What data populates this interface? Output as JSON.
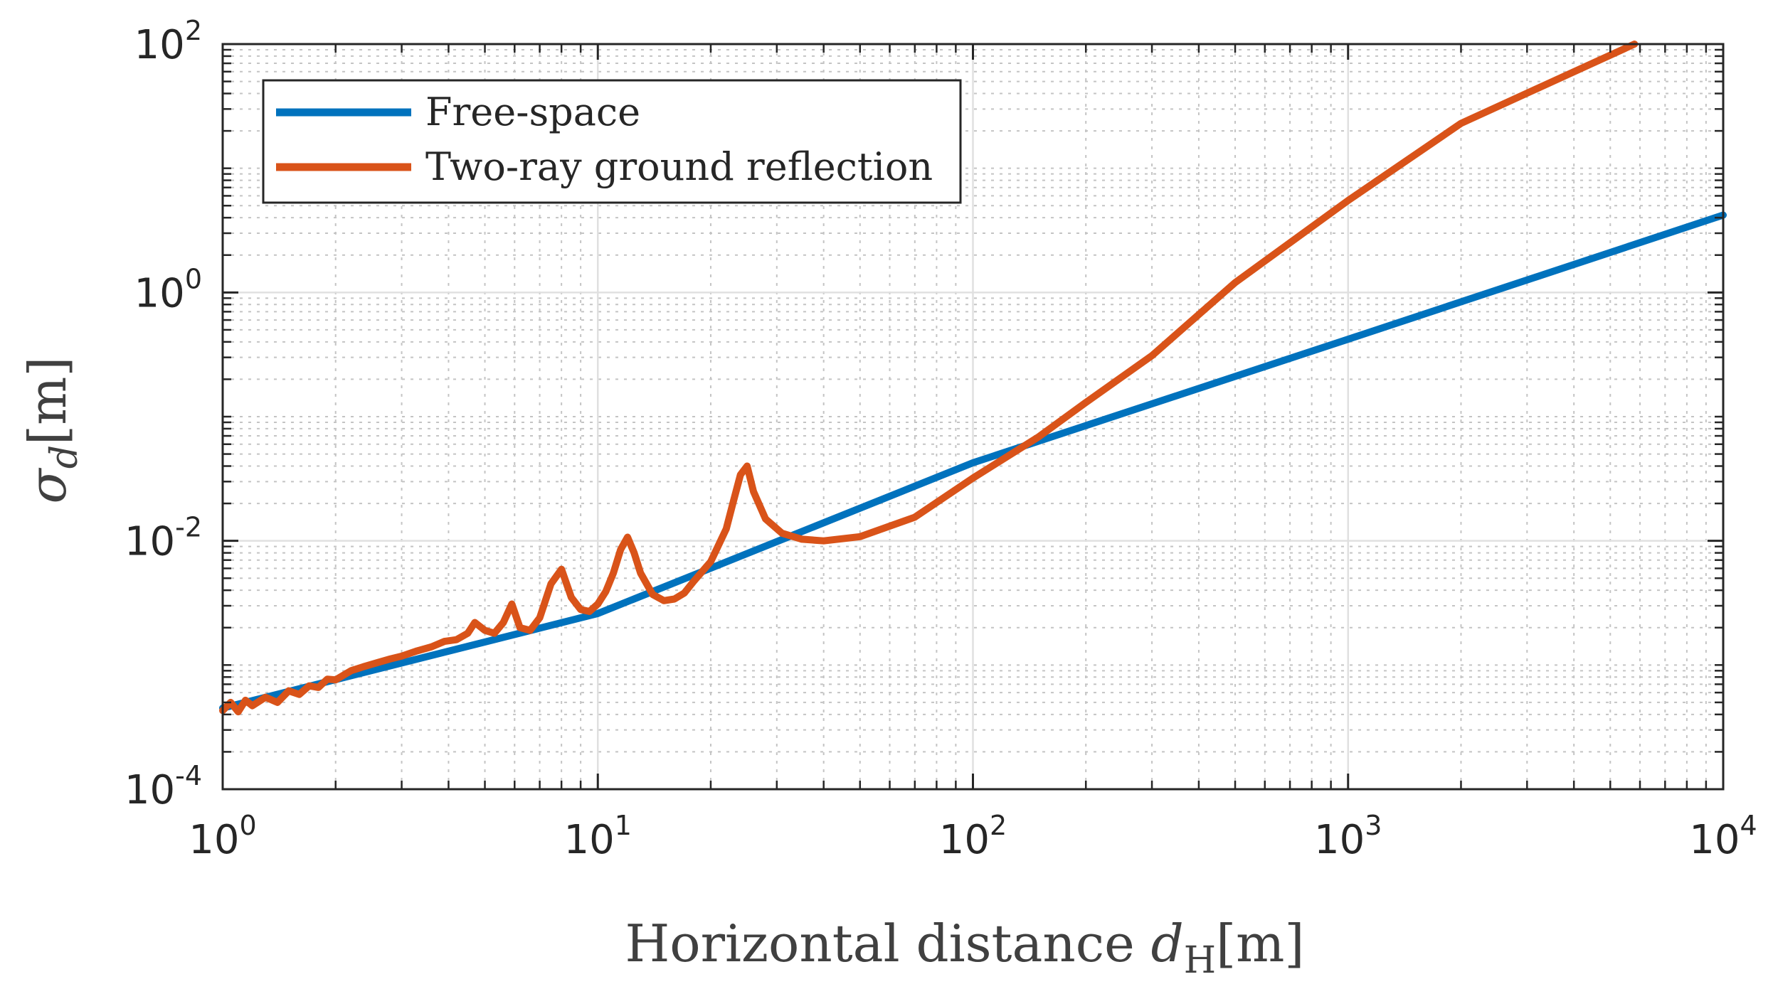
{
  "chart_data": {
    "type": "line",
    "scale": "log-log",
    "xlabel": {
      "text": "Horizontal distance",
      "var": "d",
      "sub": "H",
      "unit": "[m]"
    },
    "ylabel": {
      "var": "σ",
      "sub": "d",
      "unit": "[m]"
    },
    "xlim": [
      1,
      10000
    ],
    "ylim": [
      0.0001,
      100
    ],
    "x_ticks": [
      {
        "base": "10",
        "exp": "0",
        "value": 1
      },
      {
        "base": "10",
        "exp": "1",
        "value": 10
      },
      {
        "base": "10",
        "exp": "2",
        "value": 100
      },
      {
        "base": "10",
        "exp": "3",
        "value": 1000
      },
      {
        "base": "10",
        "exp": "4",
        "value": 10000
      }
    ],
    "y_ticks": [
      {
        "base": "10",
        "exp": "-4",
        "value": 0.0001
      },
      {
        "base": "10",
        "exp": "-2",
        "value": 0.01
      },
      {
        "base": "10",
        "exp": "0",
        "value": 1
      },
      {
        "base": "10",
        "exp": "2",
        "value": 100
      }
    ],
    "grid": true,
    "minor_grid": true,
    "legend_position": "top-left",
    "series": [
      {
        "name": "Free-space",
        "color": "#0072BD",
        "x": [
          1,
          10,
          100,
          1000,
          10000
        ],
        "y": [
          0.00045,
          0.0026,
          0.0425,
          0.42,
          4.2
        ]
      },
      {
        "name": "Two-ray ground reflection",
        "color": "#D95319",
        "x": [
          1,
          1.05,
          1.1,
          1.15,
          1.2,
          1.3,
          1.4,
          1.5,
          1.6,
          1.7,
          1.8,
          1.9,
          2.0,
          2.2,
          2.4,
          2.6,
          2.8,
          3.0,
          3.3,
          3.6,
          3.9,
          4.2,
          4.5,
          4.7,
          5.0,
          5.3,
          5.6,
          5.9,
          6.2,
          6.6,
          7.0,
          7.5,
          8.0,
          8.5,
          9.0,
          9.5,
          10.0,
          10.5,
          11.0,
          11.5,
          12.0,
          12.5,
          13.0,
          14.0,
          15.0,
          16.0,
          17.0,
          18.0,
          20.0,
          22.0,
          23.0,
          24.0,
          25.0,
          26.0,
          28.0,
          31.0,
          35.0,
          40.0,
          50.0,
          70.0,
          100.0,
          150.0,
          200.0,
          300.0,
          500.0,
          1000.0,
          2000.0,
          5800.0
        ],
        "y": [
          0.00043,
          0.0005,
          0.00042,
          0.00052,
          0.00047,
          0.00055,
          0.0005,
          0.00062,
          0.00058,
          0.00068,
          0.00066,
          0.00077,
          0.00076,
          0.0009,
          0.00098,
          0.00105,
          0.00112,
          0.00118,
          0.0013,
          0.0014,
          0.00155,
          0.0016,
          0.0018,
          0.0022,
          0.0019,
          0.0018,
          0.0022,
          0.0031,
          0.002,
          0.0019,
          0.0024,
          0.0045,
          0.0059,
          0.0035,
          0.0028,
          0.0027,
          0.0031,
          0.0039,
          0.0055,
          0.0085,
          0.0107,
          0.008,
          0.0055,
          0.0037,
          0.0033,
          0.0034,
          0.0038,
          0.0047,
          0.0068,
          0.0125,
          0.021,
          0.034,
          0.04,
          0.025,
          0.015,
          0.0115,
          0.0103,
          0.01,
          0.0108,
          0.0155,
          0.032,
          0.069,
          0.13,
          0.31,
          1.2,
          5.5,
          23,
          100
        ]
      }
    ]
  }
}
